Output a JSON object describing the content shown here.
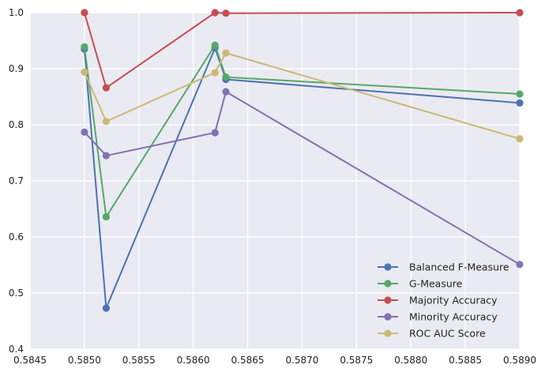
{
  "chart_data": {
    "type": "line",
    "title": "",
    "xlabel": "",
    "ylabel": "",
    "xlim": [
      0.5845,
      0.589
    ],
    "ylim": [
      0.4,
      1.0
    ],
    "xticks": [
      "0.5845",
      "0.5850",
      "0.5855",
      "0.5860",
      "0.5865",
      "0.5870",
      "0.5875",
      "0.5880",
      "0.5885",
      "0.5890"
    ],
    "yticks": [
      "0.4",
      "0.5",
      "0.6",
      "0.7",
      "0.8",
      "0.9",
      "1.0"
    ],
    "grid": true,
    "legend_position": "bottom-right",
    "x": [
      0.585,
      0.5852,
      0.5862,
      0.5863,
      0.589
    ],
    "series": [
      {
        "name": "Balanced F-Measure",
        "color": "#4c72b0",
        "values": [
          0.935,
          0.473,
          0.937,
          0.881,
          0.839
        ]
      },
      {
        "name": "G-Measure",
        "color": "#55a868",
        "values": [
          0.939,
          0.636,
          0.942,
          0.885,
          0.855
        ]
      },
      {
        "name": "Majority Accuracy",
        "color": "#c44e52",
        "values": [
          1.0,
          0.866,
          1.0,
          0.999,
          1.0
        ]
      },
      {
        "name": "Minority Accuracy",
        "color": "#8172b2",
        "values": [
          0.787,
          0.745,
          0.786,
          0.859,
          0.551
        ]
      },
      {
        "name": "ROC AUC Score",
        "color": "#ccb974",
        "values": [
          0.894,
          0.806,
          0.893,
          0.928,
          0.775
        ]
      }
    ]
  }
}
